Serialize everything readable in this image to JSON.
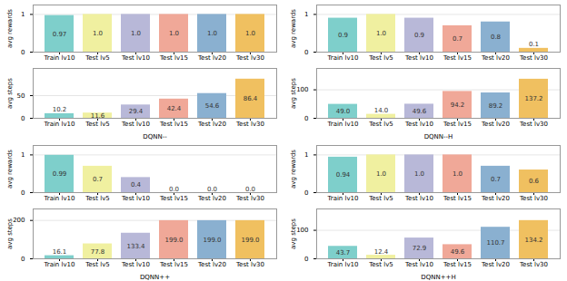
{
  "chart_data": [
    {
      "type": "bar",
      "ylabel": "avg rewards",
      "categories": [
        "Train lv10",
        "Test lv5",
        "Test lv10",
        "Test lv15",
        "Test lv20",
        "Test lv30"
      ],
      "values": [
        0.97,
        1.0,
        1.0,
        1.0,
        1.0,
        1.0
      ],
      "value_labels": [
        "0.97",
        "1.0",
        "1.0",
        "1.0",
        "1.0",
        "1.0"
      ],
      "colors": [
        "#7ecfcb",
        "#f0f0a0",
        "#b8b8d8",
        "#f0a898",
        "#8ab0d0",
        "#f0c060"
      ],
      "ylim": [
        0,
        1.25
      ],
      "yticks": [
        0,
        1
      ],
      "grid": true,
      "data_labels": true
    },
    {
      "type": "bar",
      "ylabel": "avg rewards",
      "categories": [
        "Train lv10",
        "Test lv5",
        "Test lv10",
        "Test lv15",
        "Test lv20",
        "Test lv30"
      ],
      "values": [
        0.9,
        1.0,
        0.9,
        0.7,
        0.8,
        0.1
      ],
      "value_labels": [
        "0.9",
        "1.0",
        "0.9",
        "0.7",
        "0.8",
        "0.1"
      ],
      "colors": [
        "#7ecfcb",
        "#f0f0a0",
        "#b8b8d8",
        "#f0a898",
        "#8ab0d0",
        "#f0c060"
      ],
      "ylim": [
        0,
        1.25
      ],
      "yticks": [
        0,
        1
      ],
      "grid": true,
      "data_labels": true
    },
    {
      "type": "bar",
      "ylabel": "avg steps",
      "xlabel": "DQNN--",
      "categories": [
        "Train lv10",
        "Test lv5",
        "Test lv10",
        "Test lv15",
        "Test lv20",
        "Test lv30"
      ],
      "values": [
        10.2,
        11.6,
        29.4,
        42.4,
        54.6,
        86.4
      ],
      "value_labels": [
        "10.2",
        "11.6",
        "29.4",
        "42.4",
        "54.6",
        "86.4"
      ],
      "colors": [
        "#7ecfcb",
        "#f0f0a0",
        "#b8b8d8",
        "#f0a898",
        "#8ab0d0",
        "#f0c060"
      ],
      "ylim": [
        0,
        110
      ],
      "yticks": [
        0,
        50
      ],
      "grid": true,
      "data_labels": true
    },
    {
      "type": "bar",
      "ylabel": "avg steps",
      "xlabel": "DQNN--H",
      "categories": [
        "Train lv10",
        "Test lv5",
        "Test lv10",
        "Test lv15",
        "Test lv20",
        "Test lv30"
      ],
      "values": [
        49.0,
        14.0,
        49.6,
        94.2,
        89.2,
        137.2
      ],
      "value_labels": [
        "49.0",
        "14.0",
        "49.6",
        "94.2",
        "89.2",
        "137.2"
      ],
      "colors": [
        "#7ecfcb",
        "#f0f0a0",
        "#b8b8d8",
        "#f0a898",
        "#8ab0d0",
        "#f0c060"
      ],
      "ylim": [
        0,
        175
      ],
      "yticks": [
        0,
        100
      ],
      "grid": true,
      "data_labels": true
    },
    {
      "type": "bar",
      "ylabel": "avg rewards",
      "categories": [
        "Train lv10",
        "Test lv5",
        "Test lv10",
        "Test lv15",
        "Test lv20",
        "Test lv30"
      ],
      "values": [
        0.99,
        0.7,
        0.4,
        0.0,
        0.0,
        0.0
      ],
      "value_labels": [
        "0.99",
        "0.7",
        "0.4",
        "0.0",
        "0.0",
        "0.0"
      ],
      "colors": [
        "#7ecfcb",
        "#f0f0a0",
        "#b8b8d8",
        "#f0a898",
        "#8ab0d0",
        "#f0c060"
      ],
      "ylim": [
        0,
        1.25
      ],
      "yticks": [
        0,
        1
      ],
      "grid": true,
      "data_labels": true
    },
    {
      "type": "bar",
      "ylabel": "avg rewards",
      "categories": [
        "Train lv10",
        "Test lv5",
        "Test lv10",
        "Test lv15",
        "Test lv20",
        "Test lv30"
      ],
      "values": [
        0.94,
        1.0,
        1.0,
        1.0,
        0.7,
        0.6
      ],
      "value_labels": [
        "0.94",
        "1.0",
        "1.0",
        "1.0",
        "0.7",
        "0.6"
      ],
      "colors": [
        "#7ecfcb",
        "#f0f0a0",
        "#b8b8d8",
        "#f0a898",
        "#8ab0d0",
        "#f0c060"
      ],
      "ylim": [
        0,
        1.25
      ],
      "yticks": [
        0,
        1
      ],
      "grid": true,
      "data_labels": true
    },
    {
      "type": "bar",
      "ylabel": "avg steps",
      "xlabel": "DQNN++",
      "categories": [
        "Train lv10",
        "Test lv5",
        "Test lv10",
        "Test lv15",
        "Test lv20",
        "Test lv30"
      ],
      "values": [
        16.1,
        77.8,
        133.4,
        199.0,
        199.0,
        199.0
      ],
      "value_labels": [
        "16.1",
        "77.8",
        "133.4",
        "199.0",
        "199.0",
        "199.0"
      ],
      "colors": [
        "#7ecfcb",
        "#f0f0a0",
        "#b8b8d8",
        "#f0a898",
        "#8ab0d0",
        "#f0c060"
      ],
      "ylim": [
        0,
        260
      ],
      "yticks": [
        0,
        200
      ],
      "grid": true,
      "data_labels": true
    },
    {
      "type": "bar",
      "ylabel": "avg steps",
      "xlabel": "DQNN++H",
      "categories": [
        "Train lv10",
        "Test lv5",
        "Test lv10",
        "Test lv15",
        "Test lv20",
        "Test lv30"
      ],
      "values": [
        43.7,
        12.4,
        72.9,
        49.6,
        110.7,
        134.2
      ],
      "value_labels": [
        "43.7",
        "12.4",
        "72.9",
        "49.6",
        "110.7",
        "134.2"
      ],
      "colors": [
        "#7ecfcb",
        "#f0f0a0",
        "#b8b8d8",
        "#f0a898",
        "#8ab0d0",
        "#f0c060"
      ],
      "ylim": [
        0,
        175
      ],
      "yticks": [
        0,
        100
      ],
      "grid": true,
      "data_labels": true
    }
  ]
}
